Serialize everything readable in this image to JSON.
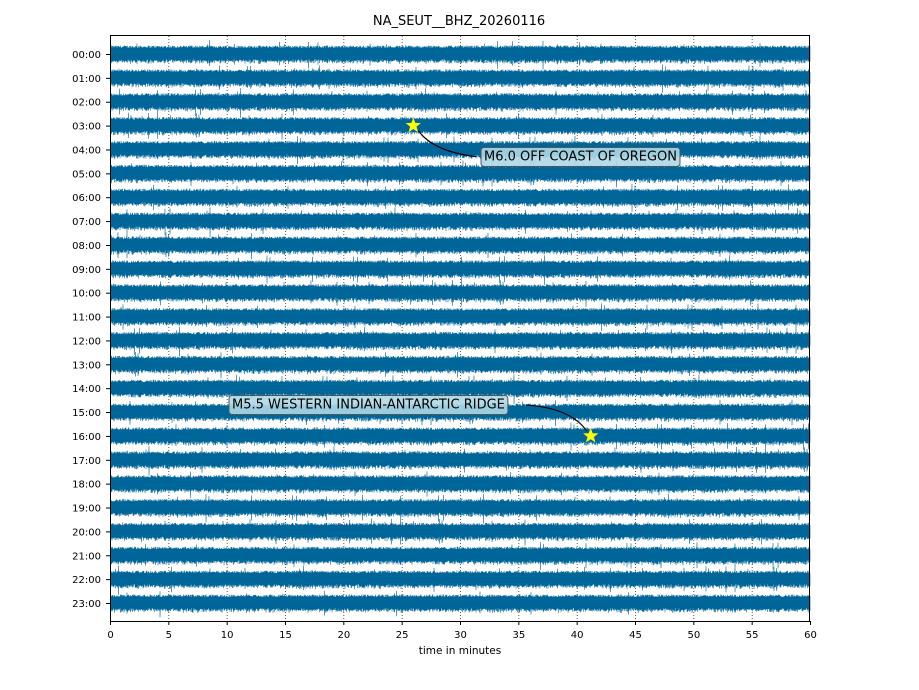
{
  "chart_data": {
    "type": "line",
    "title": "NA_SEUT__BHZ_20260116",
    "xlabel": "time in minutes",
    "ylabel": "",
    "xlim": [
      0,
      60
    ],
    "xticks": [
      0,
      5,
      10,
      15,
      20,
      25,
      30,
      35,
      40,
      45,
      50,
      55,
      60
    ],
    "yticks": [
      "00:00",
      "01:00",
      "02:00",
      "03:00",
      "04:00",
      "05:00",
      "06:00",
      "07:00",
      "08:00",
      "09:00",
      "10:00",
      "11:00",
      "12:00",
      "13:00",
      "14:00",
      "15:00",
      "16:00",
      "17:00",
      "18:00",
      "19:00",
      "20:00",
      "21:00",
      "22:00",
      "23:00"
    ],
    "grid": "vertical dotted",
    "trace_color": "#006699",
    "annotations": [
      {
        "label": "M6.0 OFF COAST OF OREGON",
        "minute": 26.0,
        "hour": 3,
        "marker": "star",
        "marker_color": "#ffff00"
      },
      {
        "label": "M5.5 WESTERN INDIAN-ANTARCTIC RIDGE",
        "minute": 41.2,
        "hour": 16,
        "marker": "star",
        "marker_color": "#ffff00"
      }
    ],
    "box_color": "#add8e6"
  }
}
